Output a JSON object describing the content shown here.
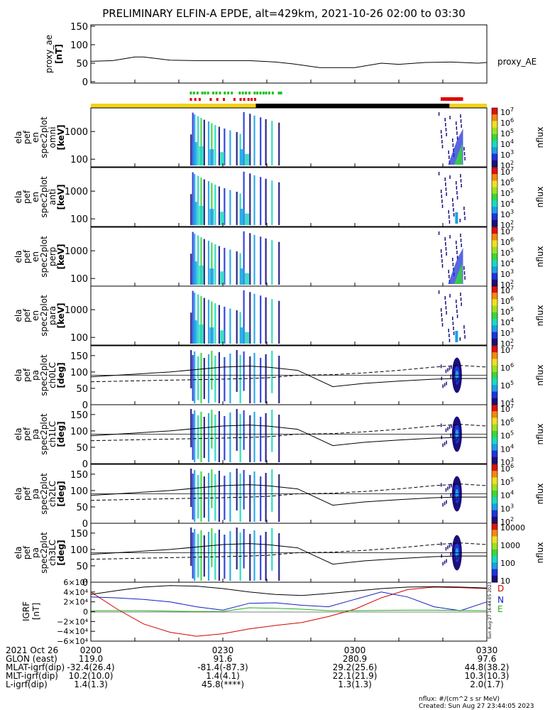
{
  "chart_data": {
    "type": "heatmap",
    "title": "PRELIMINARY ELFIN-A EPDE, alt=429km, 2021-10-26 02:00 to 03:30",
    "time_range_min": [
      0,
      90
    ],
    "ae": {
      "ylabel": "proxy_ae",
      "unit": "[nT]",
      "legend": "proxy_AE",
      "ylim": [
        0,
        150
      ],
      "yticks": [
        "0",
        "50",
        "100",
        "150"
      ],
      "x": [
        0,
        5,
        10,
        12,
        18,
        24,
        30,
        36,
        42,
        46,
        52,
        56,
        60,
        66,
        70,
        76,
        82,
        88,
        90
      ],
      "y": [
        55,
        57,
        67,
        67,
        58,
        57,
        57,
        57,
        53,
        48,
        38,
        38,
        38,
        50,
        47,
        52,
        53,
        50,
        52
      ]
    },
    "status": {
      "yellow_bar_min": [
        [
          0,
          37.5
        ],
        [
          81.5,
          90
        ]
      ],
      "black_bar_min": [
        [
          37.5,
          81.5
        ]
      ],
      "green_marks_min": [
        22.5,
        23.2,
        24.0,
        25.1,
        25.7,
        26.4,
        27.6,
        28.3,
        29.1,
        30.2,
        31.0,
        31.8,
        33.6,
        34.3,
        35.0,
        35.8,
        37.0,
        37.6,
        38.3,
        39.0,
        39.6,
        40.3,
        41.1,
        42.5,
        43.0
      ],
      "red_marks_min": [
        22.5,
        23.5,
        24.5,
        27.0,
        28.5,
        30.0,
        32.4,
        33.8,
        34.6,
        35.6,
        36.3,
        37.1
      ],
      "red_block_min": [
        [
          79.5,
          84.6
        ]
      ]
    },
    "spec_panels": [
      {
        "labels": [
          "ela",
          "pef",
          "en",
          "spec2plot",
          "omni",
          "[keV]"
        ],
        "kind": "energy",
        "yticks": [
          "100",
          "1000"
        ],
        "cbar": [
          "10^7",
          "10^6",
          "10^5",
          "10^4",
          "10^3",
          "10^2"
        ],
        "cbar_label": "nflux"
      },
      {
        "labels": [
          "ela",
          "pef",
          "en",
          "spec2plot",
          "anti",
          "[keV]"
        ],
        "kind": "energy",
        "yticks": [
          "100",
          "1000"
        ],
        "cbar": [
          "10^7",
          "10^6",
          "10^5",
          "10^4",
          "10^3",
          "10^2"
        ],
        "cbar_label": "nflux"
      },
      {
        "labels": [
          "ela",
          "pef",
          "en",
          "spec2plot",
          "perp",
          "[keV]"
        ],
        "kind": "energy",
        "yticks": [
          "100",
          "1000"
        ],
        "cbar": [
          "10^7",
          "10^6",
          "10^5",
          "10^4",
          "10^3",
          "10^2"
        ],
        "cbar_label": "nflux"
      },
      {
        "labels": [
          "ela",
          "pef",
          "en",
          "spec2plot",
          "para",
          "[keV]"
        ],
        "kind": "energy",
        "yticks": [
          "100",
          "1000"
        ],
        "cbar": [
          "10^7",
          "10^6",
          "10^5",
          "10^4",
          "10^3",
          "10^2"
        ],
        "cbar_label": "nflux"
      },
      {
        "labels": [
          "ela",
          "pef",
          "pa",
          "spec2plot",
          "ch0LC",
          "[deg]"
        ],
        "kind": "pa",
        "yticks": [
          "0",
          "50",
          "100",
          "150"
        ],
        "cbar": [
          "10^7",
          "10^6",
          "10^5",
          "10^4"
        ],
        "cbar_label": "nflux"
      },
      {
        "labels": [
          "ela",
          "pef",
          "pa",
          "spec2plot",
          "ch1LC",
          "[deg]"
        ],
        "kind": "pa",
        "yticks": [
          "0",
          "50",
          "100",
          "150"
        ],
        "cbar": [
          "10^7",
          "10^6",
          "10^5",
          "10^4",
          "10^3"
        ],
        "cbar_label": "nflux"
      },
      {
        "labels": [
          "ela",
          "pef",
          "pa",
          "spec2plot",
          "ch2LC",
          "[deg]"
        ],
        "kind": "pa",
        "yticks": [
          "0",
          "50",
          "100",
          "150"
        ],
        "cbar": [
          "10^6",
          "10^5",
          "10^4",
          "10^3",
          "10^2"
        ],
        "cbar_label": "nflux"
      },
      {
        "labels": [
          "ela",
          "pef",
          "pa",
          "spec2plot",
          "ch3LC",
          "[deg]"
        ],
        "kind": "pa",
        "yticks": [
          "0",
          "50",
          "100",
          "150"
        ],
        "cbar": [
          "10000",
          "1000",
          "100",
          "10"
        ],
        "cbar_label": "nflux"
      }
    ],
    "loss_cone": {
      "x": [
        0,
        18,
        30,
        36,
        40,
        47,
        55,
        62,
        70,
        78,
        84,
        90
      ],
      "solid": [
        85,
        100,
        115,
        118,
        115,
        105,
        55,
        65,
        72,
        78,
        80,
        80
      ],
      "dashed": [
        70,
        75,
        78,
        80,
        82,
        90,
        92,
        97,
        105,
        115,
        120,
        115
      ]
    },
    "igrf": {
      "ylabel": "IGRF",
      "unit": "[nT]",
      "legend": [
        "D",
        "N",
        "E"
      ],
      "stamp": "Sun Aug 27 16:44:05 2023",
      "ylim": [
        -60000,
        60000
      ],
      "yticks": [
        "6×10⁴",
        "4×10⁴",
        "2×10⁴",
        "0",
        "−2×10⁴",
        "−4×10⁴",
        "−6×10⁴"
      ],
      "x": [
        0,
        6,
        12,
        18,
        24,
        30,
        36,
        42,
        48,
        54,
        60,
        66,
        72,
        78,
        84,
        90
      ],
      "D": [
        40000,
        5000,
        -25000,
        -42000,
        -50000,
        -45000,
        -35000,
        -28000,
        -22000,
        -10000,
        5000,
        28000,
        45000,
        50000,
        49000,
        47000
      ],
      "N": [
        30000,
        28000,
        25000,
        20000,
        10000,
        3000,
        17000,
        18000,
        13000,
        10000,
        25000,
        40000,
        30000,
        10000,
        2000,
        20000
      ],
      "E": [
        2000,
        2000,
        2000,
        1000,
        500,
        500,
        8000,
        7000,
        5000,
        2000,
        2000,
        2500,
        3000,
        3000,
        2500,
        2000
      ],
      "T": [
        35000,
        43000,
        50000,
        53000,
        52000,
        47000,
        40000,
        35000,
        33000,
        37000,
        42000,
        47000,
        50000,
        51000,
        50000,
        48000
      ]
    },
    "time_table": {
      "rows": [
        [
          "2021 Oct 26",
          "0200",
          "0230",
          "0300",
          "0330"
        ],
        [
          "GLON (east)",
          "119.0",
          "91.6",
          "280.9",
          "97.6"
        ],
        [
          "MLAT-igrf(dip)",
          "-32.4(26.4)",
          "-81.4(-87.3)",
          "29.2(25.6)",
          "44.8(38.2)"
        ],
        [
          "MLT-igrf(dip)",
          "10.2(10.0)",
          "1.4(4.1)",
          "22.1(21.9)",
          "10.3(10.3)"
        ],
        [
          "L-igrf(dip)",
          "1.4(1.3)",
          "45.8(****)",
          "1.3(1.3)",
          "2.0(1.7)"
        ]
      ]
    },
    "footer": {
      "units": "nflux: #/(cm^2 s sr MeV)",
      "created": "Created: Sun Aug 27 23:44:05 2023"
    }
  }
}
